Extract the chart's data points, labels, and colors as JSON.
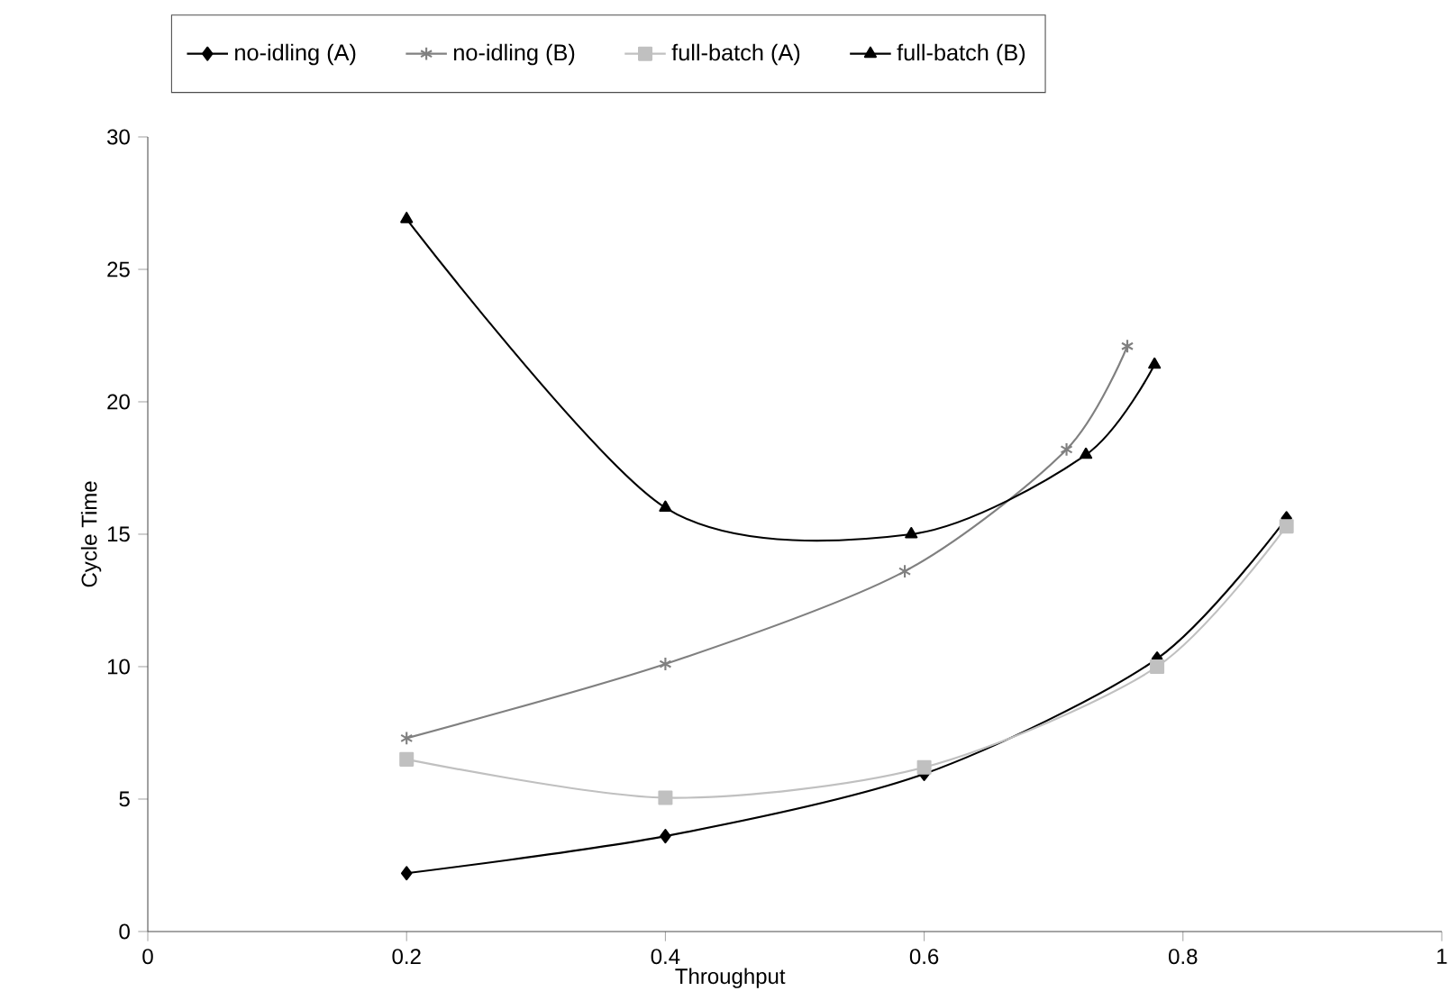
{
  "chart_data": {
    "type": "line",
    "xlabel": "Throughput",
    "ylabel": "Cycle Time",
    "xlim": [
      0,
      1
    ],
    "xticks": [
      0,
      0.2,
      0.4,
      0.6,
      0.8,
      1
    ],
    "ylim": [
      0,
      30
    ],
    "yticks": [
      0,
      5,
      10,
      15,
      20,
      25,
      30
    ],
    "grid": false,
    "legend": "top",
    "line_style": "solid",
    "series": [
      {
        "name": "no-idling (A)",
        "color": "#000000",
        "marker": "diamond",
        "x": [
          0.2,
          0.4,
          0.6,
          0.78,
          0.88
        ],
        "values": [
          2.2,
          3.6,
          5.95,
          10.3,
          15.6
        ]
      },
      {
        "name": "no-idling (B)",
        "color": "#808080",
        "marker": "cross",
        "x": [
          0.2,
          0.4,
          0.585,
          0.71,
          0.757
        ],
        "values": [
          7.3,
          10.1,
          13.6,
          18.2,
          22.1
        ]
      },
      {
        "name": "full-batch (A)",
        "color": "#c0c0c0",
        "marker": "square",
        "x": [
          0.2,
          0.4,
          0.6,
          0.78,
          0.88
        ],
        "values": [
          6.5,
          5.05,
          6.2,
          10.0,
          15.3
        ]
      },
      {
        "name": "full-batch (B)",
        "color": "#000000",
        "marker": "triangle",
        "x": [
          0.2,
          0.4,
          0.59,
          0.725,
          0.778
        ],
        "values": [
          26.9,
          16.0,
          15.0,
          18.0,
          21.4
        ]
      }
    ]
  }
}
